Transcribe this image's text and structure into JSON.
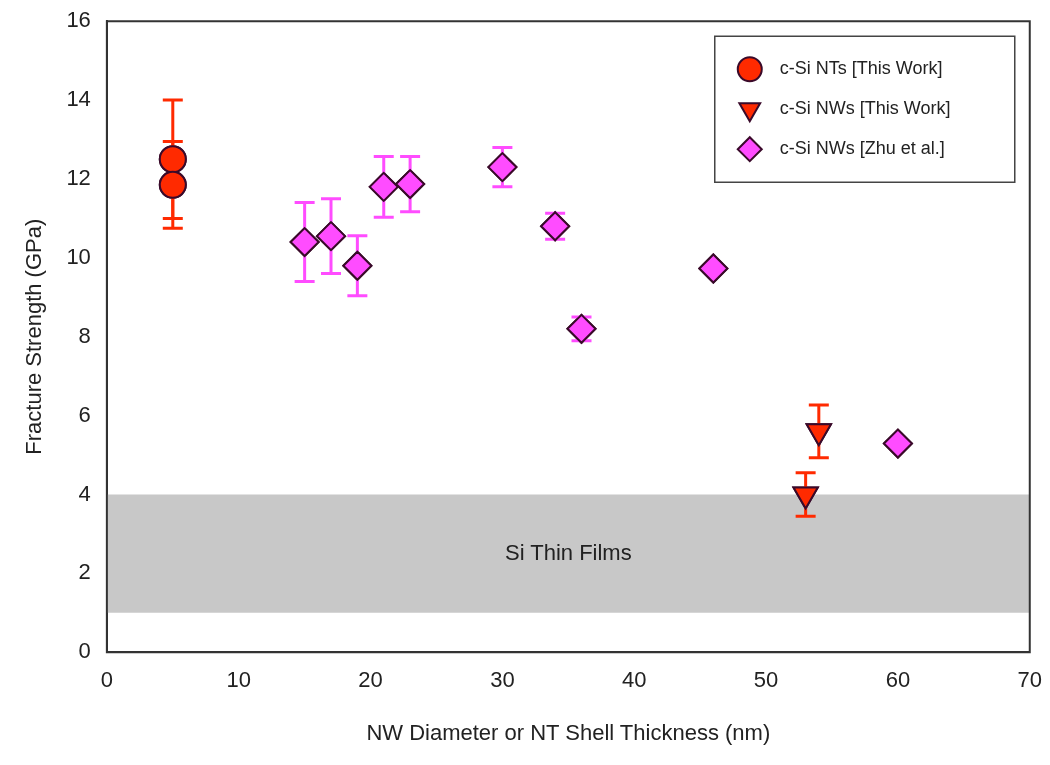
{
  "chart_data": {
    "type": "scatter",
    "xlabel": "NW Diameter or NT Shell Thickness (nm)",
    "ylabel": "Fracture Strength (GPa)",
    "xlim": [
      0,
      70
    ],
    "xticks": [
      0,
      10,
      20,
      30,
      40,
      50,
      60,
      70
    ],
    "ylim": [
      0,
      16
    ],
    "yticks": [
      0,
      2,
      4,
      6,
      8,
      10,
      12,
      14,
      16
    ],
    "grid": false,
    "legend": "top right",
    "bands": [
      {
        "axis": "y",
        "from": 1,
        "to": 4,
        "label": "Si Thin Films",
        "color": "#c8c8c8"
      }
    ],
    "series": [
      {
        "name": "c-Si NTs [This Work]",
        "color": "#ff2a00",
        "marker": "circle",
        "x": [
          5,
          5
        ],
        "values": [
          12.5,
          11.85
        ],
        "errors": [
          1.5,
          1.1
        ]
      },
      {
        "name": "c-Si NWs [This Work]",
        "color": "#ff2a00",
        "marker": "triangle",
        "x": [
          53,
          54
        ],
        "values": [
          4.0,
          5.6
        ],
        "errors": [
          0.55,
          0.67
        ]
      },
      {
        "name": "c-Si NWs [Zhu et al.]",
        "color": "#ff4cff",
        "marker": "diamond",
        "x": [
          15,
          17,
          19,
          21,
          23,
          30,
          34,
          36,
          46,
          60
        ],
        "values": [
          10.4,
          10.55,
          9.8,
          11.8,
          11.87,
          12.3,
          10.8,
          8.2,
          9.73,
          5.29
        ],
        "errors": [
          1.0,
          0.95,
          0.76,
          0.77,
          0.7,
          0.5,
          0.33,
          0.3,
          null,
          null
        ]
      }
    ]
  }
}
